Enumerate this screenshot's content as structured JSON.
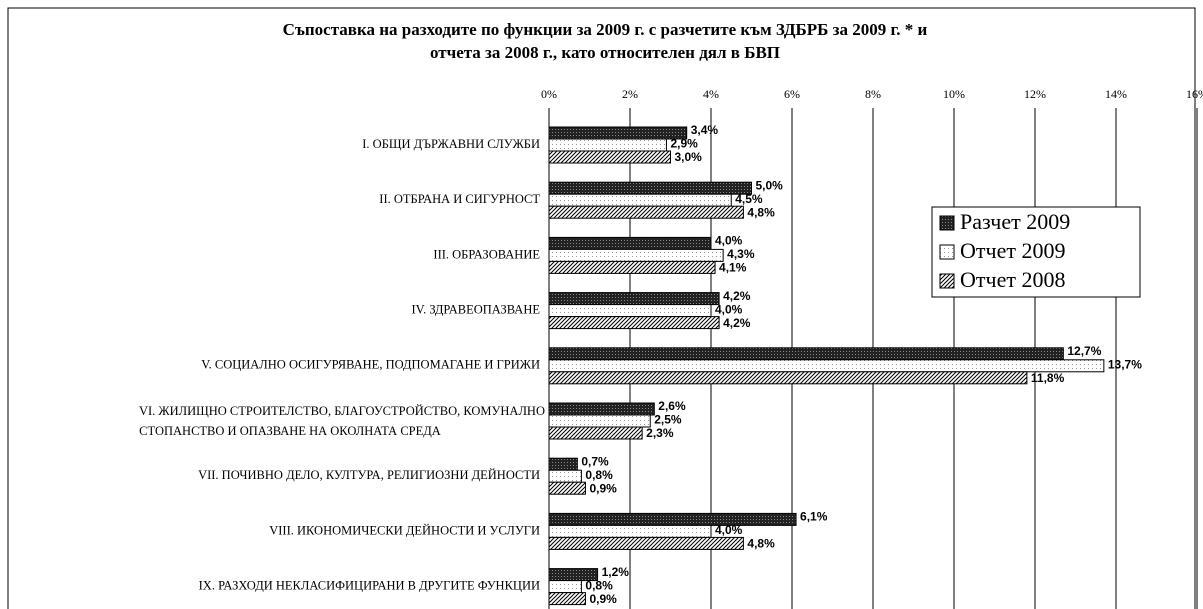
{
  "chart_data": {
    "type": "bar",
    "orientation": "horizontal",
    "title": [
      "Съпоставка на разходите по функции за 2009 г. с разчетите към ЗДБРБ за 2009 г. * и",
      "отчета за 2008 г., като относителен дял в БВП"
    ],
    "categories": [
      "I. ОБЩИ ДЪРЖАВНИ СЛУЖБИ",
      "II. ОТБРАНА И СИГУРНОСТ",
      "III. ОБРАЗОВАНИЕ",
      "IV. ЗДРАВЕОПАЗВАНЕ",
      "V. СОЦИАЛНО ОСИГУРЯВАНЕ, ПОДПОМАГАНЕ И ГРИЖИ",
      [
        "VI. ЖИЛИЩНО СТРОИТЕЛСТВО, БЛАГОУСТРОЙСТВО, КОМУНАЛНО",
        "СТОПАНСТВО И ОПАЗВАНЕ НА ОКОЛНАТА СРЕДА"
      ],
      "VII. ПОЧИВНО ДЕЛО, КУЛТУРА, РЕЛИГИОЗНИ ДЕЙНОСТИ",
      "VIII. ИКОНОМИЧЕСКИ ДЕЙНОСТИ  И УСЛУГИ",
      "IX. РАЗХОДИ НЕКЛАСИФИЦИРАНИ В ДРУГИТЕ ФУНКЦИИ"
    ],
    "series": [
      {
        "name": "Разчет 2009",
        "color": "#333333",
        "pattern": "dense",
        "values": [
          3.4,
          5.0,
          4.0,
          4.2,
          12.7,
          2.6,
          0.7,
          6.1,
          1.2
        ],
        "value_labels": [
          "3,4%",
          "5,0%",
          "4,0%",
          "4,2%",
          "12,7%",
          "2,6%",
          "0,7%",
          "6,1%",
          "1,2%"
        ]
      },
      {
        "name": "Отчет 2009",
        "color": "#ffffff",
        "pattern": "dots",
        "values": [
          2.9,
          4.5,
          4.3,
          4.0,
          13.7,
          2.5,
          0.8,
          4.0,
          0.8
        ],
        "value_labels": [
          "2,9%",
          "4,5%",
          "4,3%",
          "4,0%",
          "13,7%",
          "2,5%",
          "0,8%",
          "4,0%",
          "0,8%"
        ]
      },
      {
        "name": "Отчет 2008",
        "color": "#ffffff",
        "pattern": "diagonal",
        "values": [
          3.0,
          4.8,
          4.1,
          4.2,
          11.8,
          2.3,
          0.9,
          4.8,
          0.9
        ],
        "value_labels": [
          "3,0%",
          "4,8%",
          "4,1%",
          "4,2%",
          "11,8%",
          "2,3%",
          "0,9%",
          "4,8%",
          "0,9%"
        ]
      }
    ],
    "xlim": [
      0,
      16
    ],
    "xticks": [
      {
        "value": 0,
        "label": "0%"
      },
      {
        "value": 2,
        "label": "2%"
      },
      {
        "value": 4,
        "label": "4%"
      },
      {
        "value": 6,
        "label": "6%"
      },
      {
        "value": 8,
        "label": "8%"
      },
      {
        "value": 10,
        "label": "10%"
      },
      {
        "value": 12,
        "label": "12%"
      },
      {
        "value": 14,
        "label": "14%"
      },
      {
        "value": 16,
        "label": "16%"
      }
    ],
    "grid": true,
    "legend_position": "right"
  }
}
